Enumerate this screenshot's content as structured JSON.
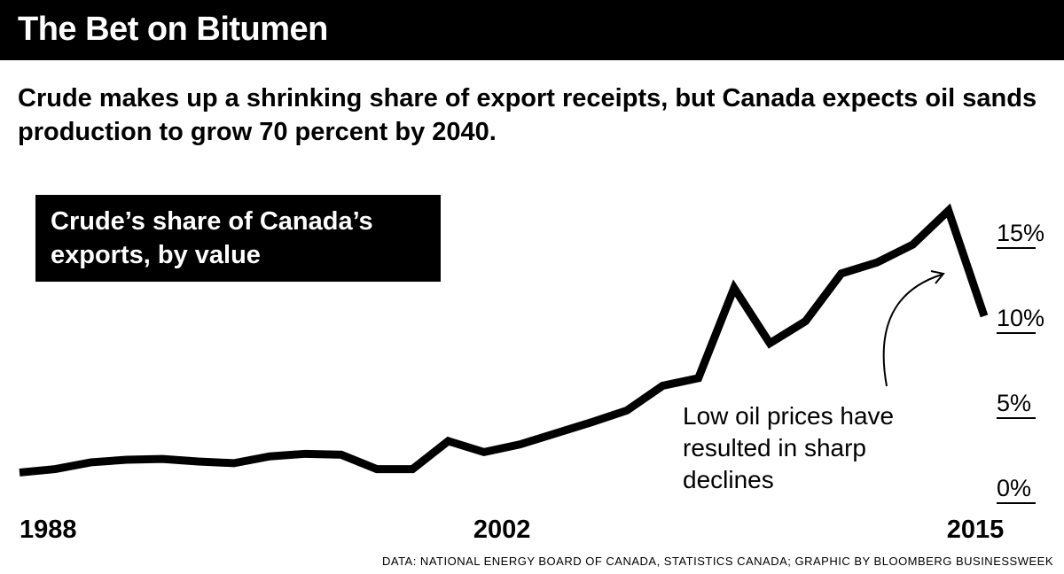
{
  "header": {
    "title": "The Bet on Bitumen",
    "subtitle": "Crude makes up a shrinking share of export receipts, but Canada expects oil sands production to grow 70 percent by 2040."
  },
  "chart_data": {
    "type": "line",
    "title": "Crude’s share of Canada’s exports, by value",
    "x": [
      1988,
      1989,
      1990,
      1991,
      1992,
      1993,
      1994,
      1995,
      1996,
      1997,
      1998,
      1999,
      2000,
      2001,
      2002,
      2003,
      2004,
      2005,
      2006,
      2007,
      2008,
      2009,
      2010,
      2011,
      2012,
      2013,
      2014,
      2015
    ],
    "values": [
      1.8,
      2.0,
      2.4,
      2.55,
      2.6,
      2.45,
      2.35,
      2.75,
      2.9,
      2.85,
      2.0,
      2.0,
      3.65,
      3.0,
      3.45,
      4.1,
      4.75,
      5.45,
      6.9,
      7.35,
      12.65,
      9.4,
      10.7,
      13.5,
      14.15,
      15.2,
      17.2,
      11.0
    ],
    "x_ticks": [
      "1988",
      "2002",
      "2015"
    ],
    "y_ticks": [
      "0%",
      "5%",
      "10%",
      "15%"
    ],
    "y_tick_values": [
      0,
      5,
      10,
      15
    ],
    "ylim": [
      0,
      15
    ],
    "xlim": [
      1988,
      2015
    ],
    "y_axis_position": "right",
    "annotation": "Low oil prices have resulted in sharp declines",
    "line_color": "#000000"
  },
  "footer": {
    "source": "DATA: NATIONAL ENERGY BOARD OF CANADA, STATISTICS CANADA; GRAPHIC BY BLOOMBERG BUSINESSWEEK"
  }
}
